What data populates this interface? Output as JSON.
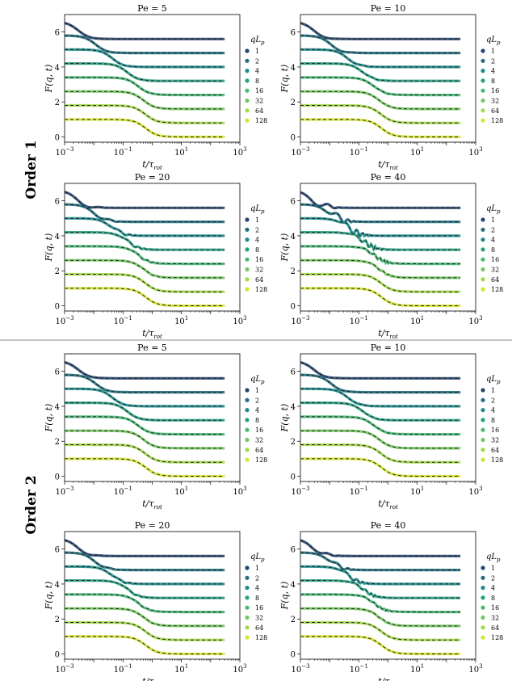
{
  "figure": {
    "row_labels": [
      "Order 1",
      "Order 2"
    ],
    "xlabel": "t/τ",
    "xlabel_sub": "rot",
    "ylabel": "F(q, t)",
    "legend_title": "qL",
    "legend_title_sub": "p",
    "legend_entries": [
      "1",
      "2",
      "4",
      "8",
      "16",
      "32",
      "64",
      "128"
    ],
    "series_colors": [
      "#26456e",
      "#1f6f7e",
      "#1d8c8c",
      "#27a081",
      "#47b875",
      "#74c95f",
      "#a5d84a",
      "#d6e535"
    ],
    "x_tick_labels": [
      {
        "base": "10",
        "exp": "−3"
      },
      {
        "base": "10",
        "exp": "−1"
      },
      {
        "base": "10",
        "exp": "1"
      },
      {
        "base": "10",
        "exp": "3"
      }
    ],
    "y_tick_labels": [
      "0",
      "2",
      "4",
      "6"
    ]
  },
  "chart_data": [
    {
      "type": "line",
      "order": "Order 1",
      "title": "Pe = 5",
      "pe": 5,
      "order_n": 1,
      "x_scale": "log",
      "xlim": [
        0.001,
        1000
      ],
      "ylim": [
        -0.3,
        7.0
      ],
      "series_names": [
        "1",
        "2",
        "4",
        "8",
        "16",
        "32",
        "64",
        "128"
      ],
      "offsets": [
        5.6,
        4.8,
        4.0,
        3.2,
        2.4,
        1.6,
        0.8,
        0.0
      ],
      "plateau_heights": [
        1.0,
        1.0,
        1.0,
        1.0,
        1.0,
        1.0,
        1.0,
        1.0
      ]
    },
    {
      "type": "line",
      "order": "Order 1",
      "title": "Pe = 10",
      "pe": 10,
      "order_n": 1,
      "x_scale": "log",
      "xlim": [
        0.001,
        1000
      ],
      "ylim": [
        -0.3,
        7.0
      ],
      "series_names": [
        "1",
        "2",
        "4",
        "8",
        "16",
        "32",
        "64",
        "128"
      ],
      "offsets": [
        5.6,
        4.8,
        4.0,
        3.2,
        2.4,
        1.6,
        0.8,
        0.0
      ],
      "plateau_heights": [
        1.0,
        1.0,
        1.0,
        1.0,
        1.0,
        1.0,
        1.0,
        1.0
      ]
    },
    {
      "type": "line",
      "order": "Order 1",
      "title": "Pe = 20",
      "pe": 20,
      "order_n": 1,
      "x_scale": "log",
      "xlim": [
        0.001,
        1000
      ],
      "ylim": [
        -0.3,
        7.0
      ],
      "series_names": [
        "1",
        "2",
        "4",
        "8",
        "16",
        "32",
        "64",
        "128"
      ],
      "offsets": [
        5.6,
        4.8,
        4.0,
        3.2,
        2.4,
        1.6,
        0.8,
        0.0
      ],
      "plateau_heights": [
        1.0,
        1.0,
        1.0,
        1.0,
        1.0,
        1.0,
        1.0,
        1.0
      ]
    },
    {
      "type": "line",
      "order": "Order 1",
      "title": "Pe = 40",
      "pe": 40,
      "order_n": 1,
      "x_scale": "log",
      "xlim": [
        0.001,
        1000
      ],
      "ylim": [
        -0.3,
        7.0
      ],
      "series_names": [
        "1",
        "2",
        "4",
        "8",
        "16",
        "32",
        "64",
        "128"
      ],
      "offsets": [
        5.6,
        4.8,
        4.0,
        3.2,
        2.4,
        1.6,
        0.8,
        0.0
      ],
      "plateau_heights": [
        1.0,
        1.0,
        1.0,
        1.0,
        1.0,
        1.0,
        1.0,
        1.0
      ]
    },
    {
      "type": "line",
      "order": "Order 2",
      "title": "Pe = 5",
      "pe": 5,
      "order_n": 2,
      "x_scale": "log",
      "xlim": [
        0.001,
        1000
      ],
      "ylim": [
        -0.3,
        7.0
      ],
      "series_names": [
        "1",
        "2",
        "4",
        "8",
        "16",
        "32",
        "64",
        "128"
      ],
      "offsets": [
        5.6,
        4.8,
        4.0,
        3.2,
        2.4,
        1.6,
        0.8,
        0.0
      ],
      "plateau_heights": [
        1.0,
        1.0,
        1.0,
        1.0,
        1.0,
        1.0,
        1.0,
        1.0
      ]
    },
    {
      "type": "line",
      "order": "Order 2",
      "title": "Pe = 10",
      "pe": 10,
      "order_n": 2,
      "x_scale": "log",
      "xlim": [
        0.001,
        1000
      ],
      "ylim": [
        -0.3,
        7.0
      ],
      "series_names": [
        "1",
        "2",
        "4",
        "8",
        "16",
        "32",
        "64",
        "128"
      ],
      "offsets": [
        5.6,
        4.8,
        4.0,
        3.2,
        2.4,
        1.6,
        0.8,
        0.0
      ],
      "plateau_heights": [
        1.0,
        1.0,
        1.0,
        1.0,
        1.0,
        1.0,
        1.0,
        1.0
      ]
    },
    {
      "type": "line",
      "order": "Order 2",
      "title": "Pe = 20",
      "pe": 20,
      "order_n": 2,
      "x_scale": "log",
      "xlim": [
        0.001,
        1000
      ],
      "ylim": [
        -0.3,
        7.0
      ],
      "series_names": [
        "1",
        "2",
        "4",
        "8",
        "16",
        "32",
        "64",
        "128"
      ],
      "offsets": [
        5.6,
        4.8,
        4.0,
        3.2,
        2.4,
        1.6,
        0.8,
        0.0
      ],
      "plateau_heights": [
        1.0,
        1.0,
        1.0,
        1.0,
        1.0,
        1.0,
        1.0,
        1.0
      ]
    },
    {
      "type": "line",
      "order": "Order 2",
      "title": "Pe = 40",
      "pe": 40,
      "order_n": 2,
      "x_scale": "log",
      "xlim": [
        0.001,
        1000
      ],
      "ylim": [
        -0.3,
        7.0
      ],
      "series_names": [
        "1",
        "2",
        "4",
        "8",
        "16",
        "32",
        "64",
        "128"
      ],
      "offsets": [
        5.6,
        4.8,
        4.0,
        3.2,
        2.4,
        1.6,
        0.8,
        0.0
      ],
      "plateau_heights": [
        1.0,
        1.0,
        1.0,
        1.0,
        1.0,
        1.0,
        1.0,
        1.0
      ]
    }
  ]
}
